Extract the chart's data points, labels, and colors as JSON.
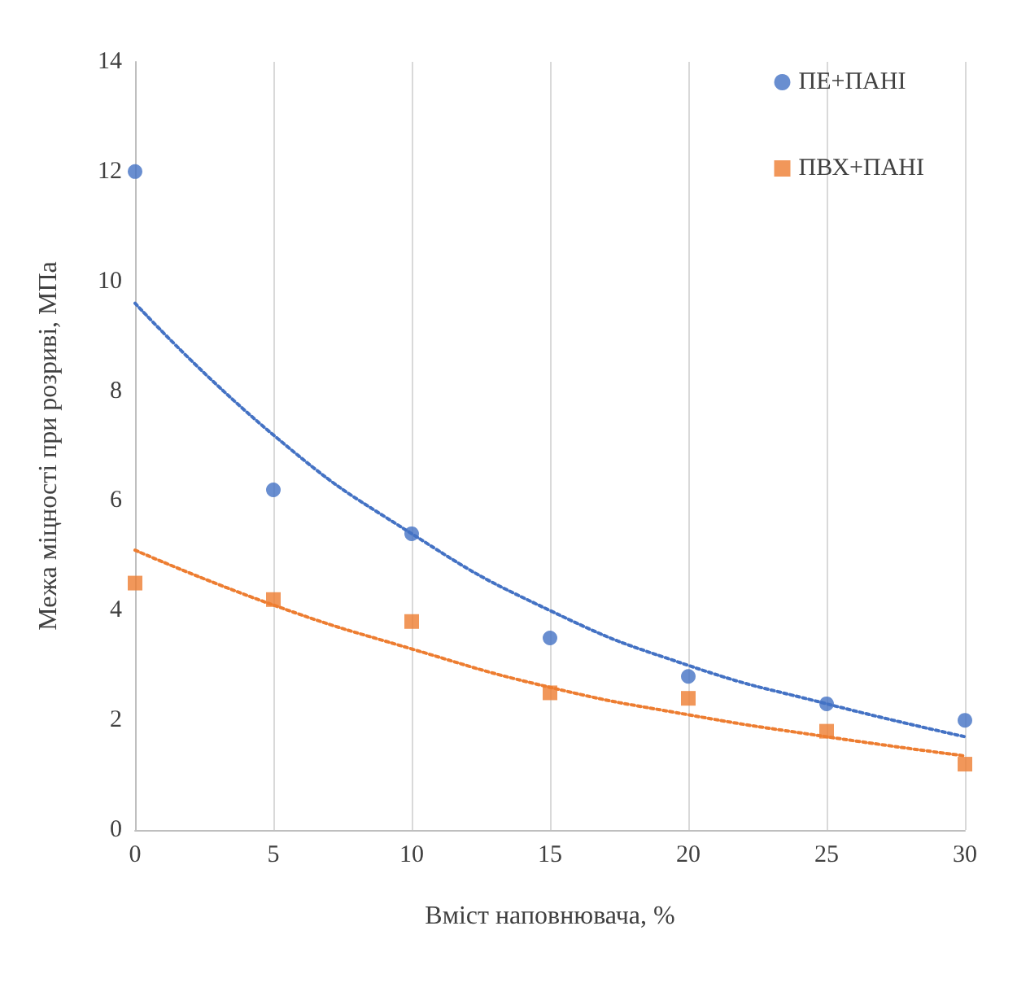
{
  "chart_data": {
    "type": "scatter",
    "xlabel": "Вміст наповнювача, %",
    "ylabel": "Межа міцності при розриві, МПа",
    "x": [
      0,
      5,
      10,
      15,
      20,
      25,
      30
    ],
    "series": [
      {
        "name": "ПЕ+ПАНІ",
        "color": "#4472c4",
        "marker": "circle",
        "values": [
          12,
          6.2,
          5.4,
          3.5,
          2.8,
          2.3,
          2.0
        ]
      },
      {
        "name": "ПВХ+ПАНІ",
        "color": "#ed7d31",
        "marker": "square",
        "values": [
          4.5,
          4.2,
          3.8,
          2.5,
          2.4,
          1.8,
          1.2
        ]
      },
      {
        "type": "line",
        "color": "#4472c4",
        "marker": "none",
        "line_style": "dotted",
        "x": [
          0,
          5,
          10,
          15,
          20,
          25,
          30
        ],
        "values": [
          9.6,
          7.2,
          5.4,
          4.0,
          3.0,
          2.3,
          1.7
        ]
      },
      {
        "type": "line",
        "color": "#ed7d31",
        "marker": "none",
        "line_style": "dotted",
        "x": [
          0,
          5,
          10,
          15,
          20,
          25,
          30
        ],
        "values": [
          5.1,
          4.1,
          3.3,
          2.6,
          2.1,
          1.7,
          1.35
        ]
      }
    ],
    "xlim": [
      0,
      30
    ],
    "xticks": [
      0,
      5,
      10,
      15,
      20,
      25,
      30
    ],
    "ylim": [
      0,
      14
    ],
    "yticks": [
      0,
      2,
      4,
      6,
      8,
      10,
      12,
      14
    ],
    "grid": "x",
    "legend": "top right"
  }
}
